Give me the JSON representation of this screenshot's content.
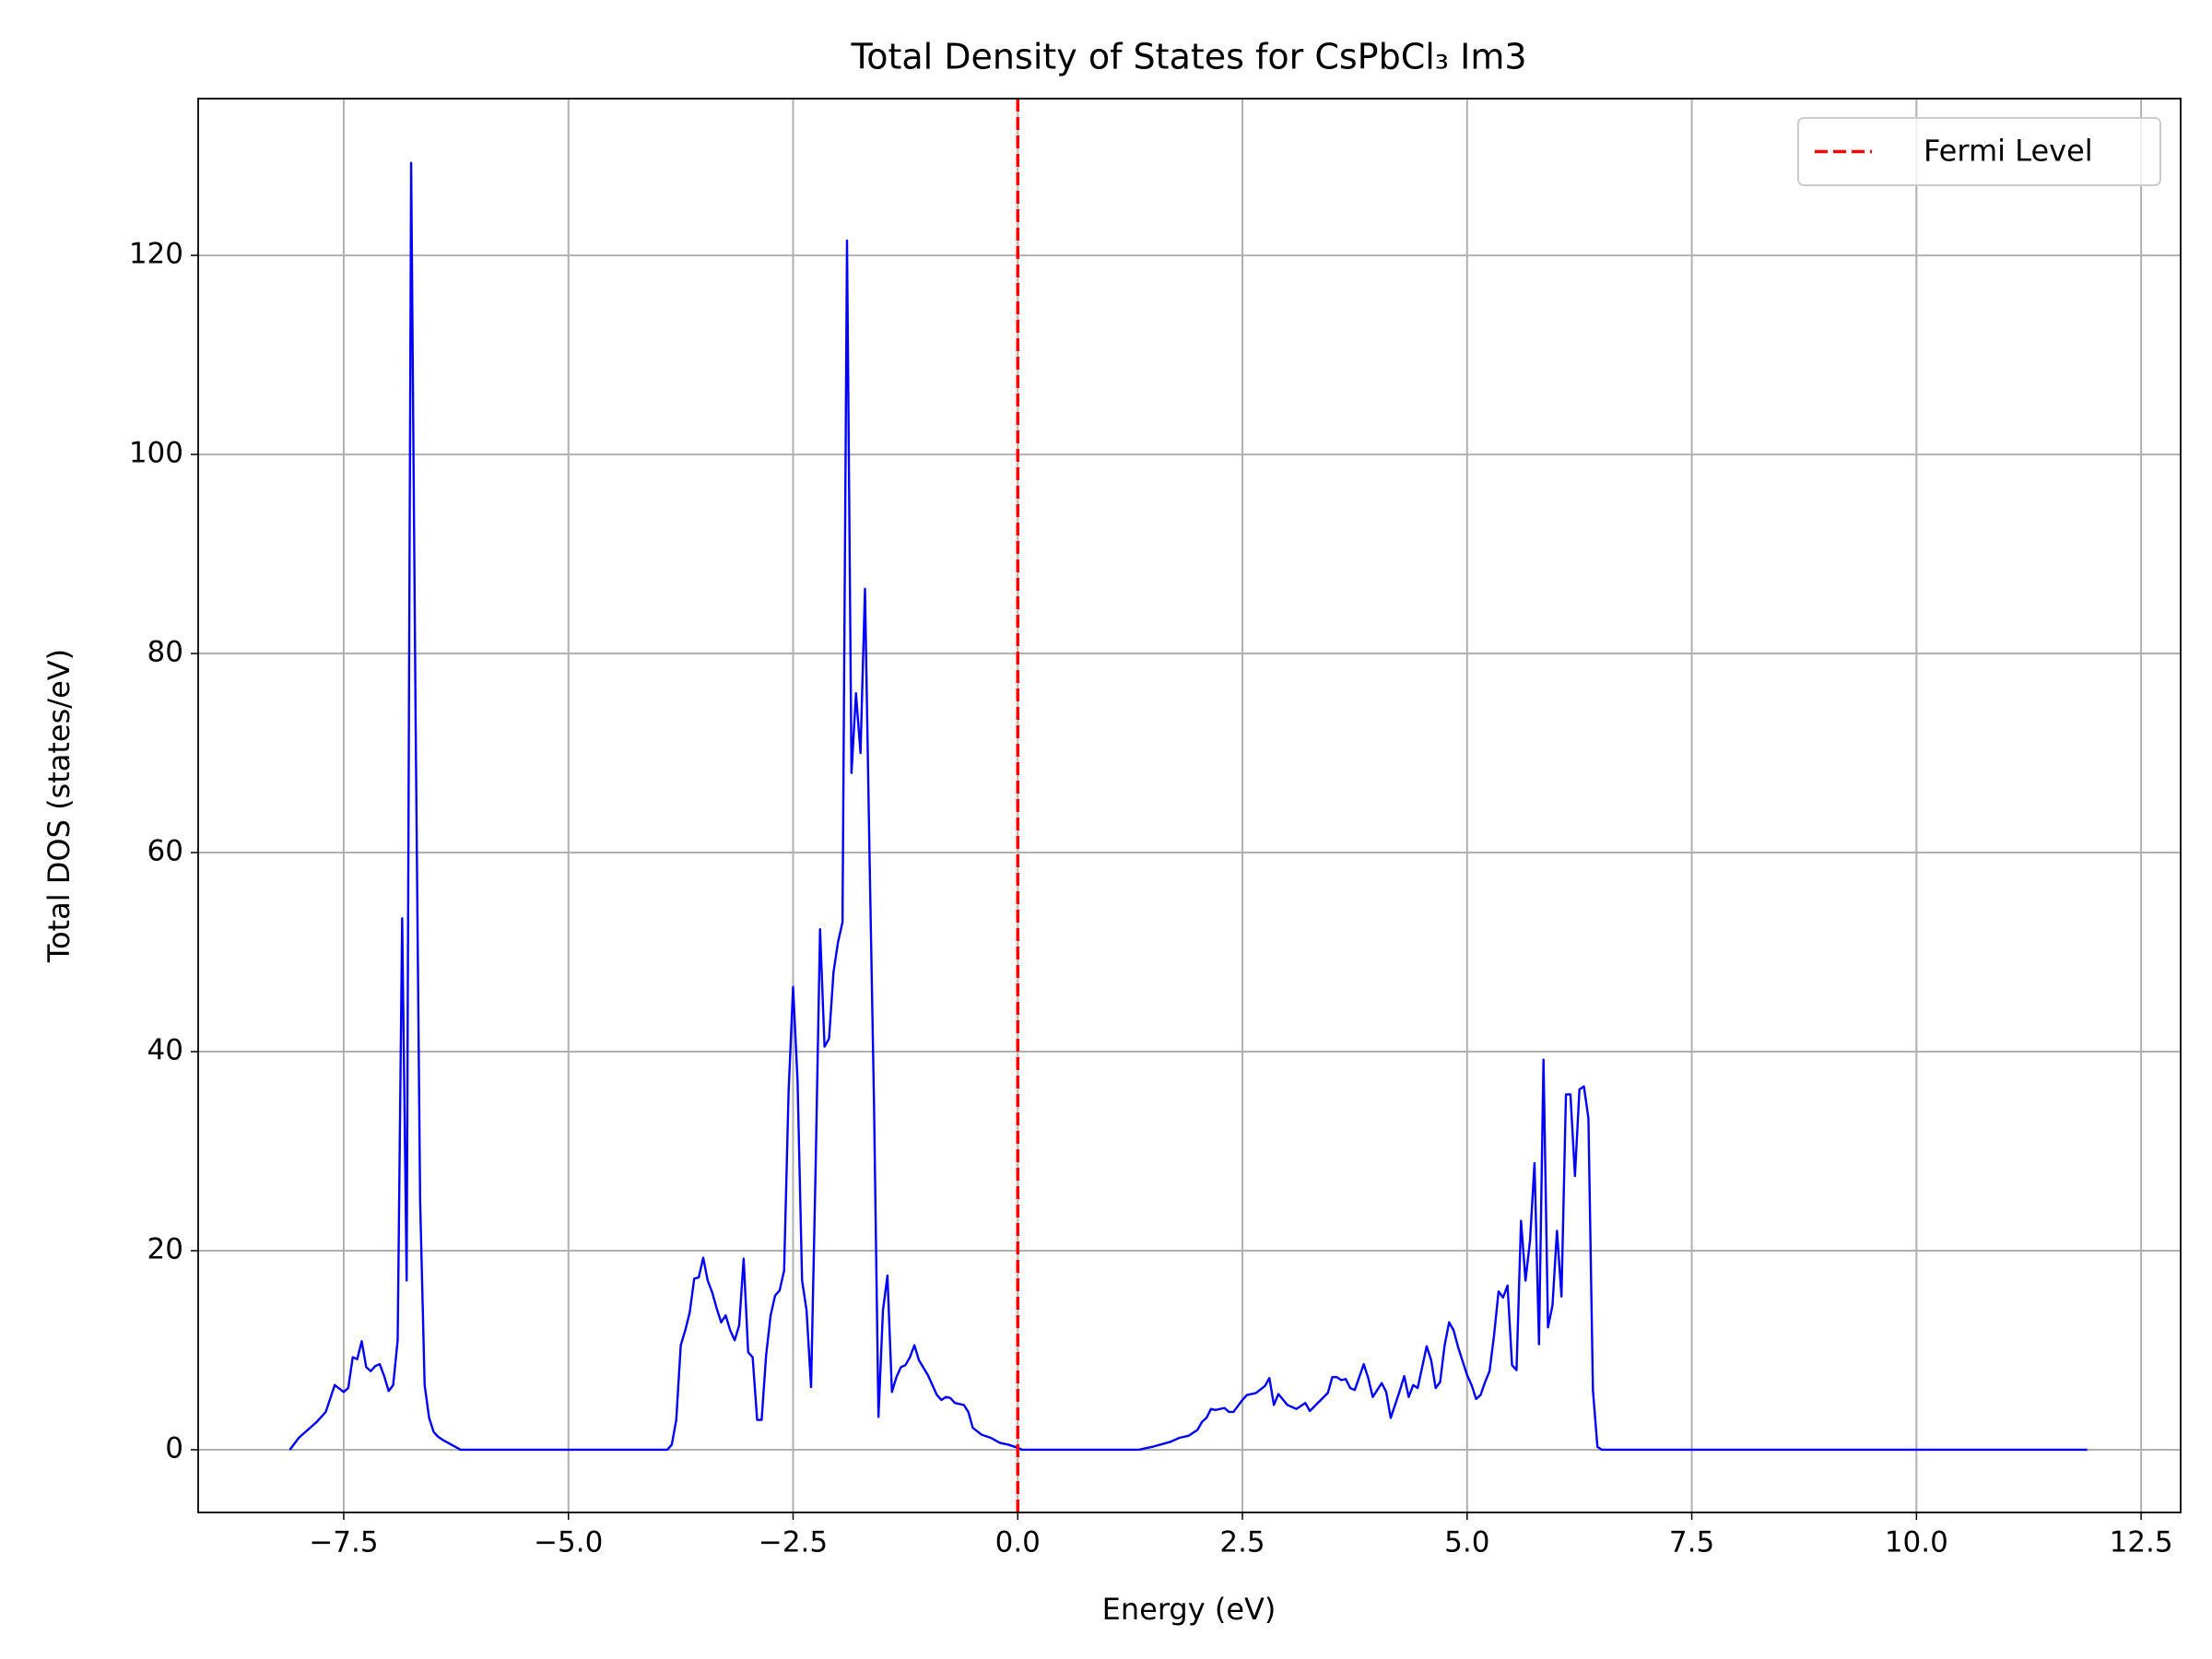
{
  "chart_data": {
    "type": "line",
    "title": "Total Density of States for CsPbCl₃ Im3",
    "xlabel": "Energy (eV)",
    "ylabel": "Total DOS (states/eV)",
    "x": [
      -8.1,
      -8.0,
      -7.9,
      -7.8,
      -7.7,
      -7.6,
      -7.5,
      -7.45,
      -7.4,
      -7.35,
      -7.3,
      -7.25,
      -7.2,
      -7.15,
      -7.1,
      -7.05,
      -7.0,
      -6.95,
      -6.9,
      -6.85,
      -6.8,
      -6.75,
      -6.7,
      -6.65,
      -6.6,
      -6.55,
      -6.5,
      -6.45,
      -6.4,
      -6.3,
      -6.2,
      -3.9,
      -3.85,
      -3.8,
      -3.75,
      -3.7,
      -3.65,
      -3.6,
      -3.55,
      -3.5,
      -3.45,
      -3.4,
      -3.35,
      -3.3,
      -3.25,
      -3.2,
      -3.15,
      -3.1,
      -3.05,
      -3.0,
      -2.95,
      -2.9,
      -2.85,
      -2.8,
      -2.75,
      -2.7,
      -2.65,
      -2.6,
      -2.55,
      -2.5,
      -2.45,
      -2.4,
      -2.35,
      -2.3,
      -2.25,
      -2.2,
      -2.15,
      -2.1,
      -2.05,
      -2.0,
      -1.95,
      -1.9,
      -1.85,
      -1.8,
      -1.75,
      -1.7,
      -1.65,
      -1.6,
      -1.55,
      -1.5,
      -1.45,
      -1.4,
      -1.35,
      -1.3,
      -1.25,
      -1.2,
      -1.15,
      -1.1,
      -1.0,
      -0.9,
      -0.85,
      -0.8,
      -0.75,
      -0.7,
      -0.6,
      -0.55,
      -0.5,
      -0.4,
      -0.3,
      -0.2,
      -0.1,
      0,
      0.05,
      1.35,
      1.5,
      1.7,
      1.8,
      1.9,
      2.0,
      2.05,
      2.1,
      2.15,
      2.2,
      2.3,
      2.35,
      2.4,
      2.5,
      2.55,
      2.65,
      2.75,
      2.8,
      2.85,
      2.9,
      3.0,
      3.1,
      3.2,
      3.25,
      3.35,
      3.45,
      3.5,
      3.55,
      3.6,
      3.65,
      3.7,
      3.75,
      3.85,
      3.9,
      3.95,
      4.0,
      4.05,
      4.1,
      4.15,
      4.25,
      4.3,
      4.35,
      4.4,
      4.45,
      4.5,
      4.55,
      4.6,
      4.65,
      4.7,
      4.75,
      4.8,
      4.85,
      4.9,
      5.0,
      5.05,
      5.1,
      5.15,
      5.2,
      5.25,
      5.3,
      5.35,
      5.4,
      5.45,
      5.5,
      5.55,
      5.6,
      5.65,
      5.7,
      5.75,
      5.8,
      5.85,
      5.9,
      5.95,
      6.0,
      6.05,
      6.1,
      6.15,
      6.2,
      6.25,
      6.3,
      6.35,
      6.4,
      6.45,
      6.5,
      11.9
    ],
    "series": [
      {
        "color": "#0000ff",
        "values": [
          0,
          1.2,
          2.0,
          2.8,
          3.8,
          6.5,
          5.8,
          6.2,
          9.3,
          9.1,
          10.9,
          8.3,
          7.9,
          8.4,
          8.6,
          7.4,
          5.9,
          6.5,
          11,
          53.4,
          17,
          129.3,
          73,
          25,
          6.5,
          3.2,
          1.8,
          1.3,
          1.0,
          0.5,
          0,
          0,
          0.5,
          3,
          10.5,
          12,
          13.8,
          17.2,
          17.3,
          19.3,
          17,
          15.8,
          14.2,
          12.8,
          13.5,
          12,
          11,
          12.5,
          19.2,
          9.8,
          9.3,
          3,
          3,
          9.5,
          13.5,
          15.5,
          16,
          18,
          36,
          46.5,
          37,
          17,
          14,
          6.3,
          28,
          52.3,
          40.5,
          41.3,
          48,
          51,
          53,
          121.5,
          68,
          76,
          70,
          86.5,
          60,
          35,
          3.3,
          14,
          17.5,
          5.8,
          7.3,
          8.3,
          8.5,
          9.3,
          10.5,
          9,
          7.5,
          5.5,
          5,
          5.3,
          5.2,
          4.7,
          4.5,
          3.8,
          2.2,
          1.5,
          1.2,
          0.7,
          0.5,
          0.2,
          0,
          0,
          0.3,
          0.8,
          1.2,
          1.4,
          2.0,
          2.8,
          3.2,
          4.1,
          4.0,
          4.2,
          3.8,
          3.8,
          5.0,
          5.5,
          5.7,
          6.4,
          7.2,
          4.5,
          5.6,
          4.5,
          4.1,
          4.7,
          3.9,
          4.8,
          5.7,
          7.3,
          7.3,
          7.0,
          7.1,
          6.2,
          6.0,
          8.6,
          7.2,
          5.3,
          6.0,
          6.7,
          5.8,
          3.2,
          5.9,
          7.4,
          5.3,
          6.5,
          6.2,
          8.3,
          10.4,
          9.0,
          6.2,
          6.8,
          10.5,
          12.8,
          12.0,
          10.3,
          7.5,
          6.5,
          5.1,
          5.5,
          6.8,
          7.9,
          11.5,
          15.9,
          15.3,
          16.5,
          8.5,
          8.0,
          23,
          17,
          21,
          28.8,
          10.6,
          39.2,
          12.3,
          14.5,
          22,
          15.4,
          35.7,
          35.7,
          27.5,
          36.2,
          36.5,
          33.3,
          6.0,
          0.3,
          0,
          0
        ]
      }
    ],
    "vline": {
      "name": "Fermi Level",
      "x": 0,
      "color": "#ff0000",
      "style": "dashed"
    },
    "xlim": [
      -9.12,
      12.94
    ],
    "ylim": [
      -6.3,
      135.75
    ],
    "xticks": [
      {
        "value": -7.5,
        "label": "−7.5"
      },
      {
        "value": -5,
        "label": "−5.0"
      },
      {
        "value": -2.5,
        "label": "−2.5"
      },
      {
        "value": 0,
        "label": "0.0"
      },
      {
        "value": 2.5,
        "label": "2.5"
      },
      {
        "value": 5,
        "label": "5.0"
      },
      {
        "value": 7.5,
        "label": "7.5"
      },
      {
        "value": 10,
        "label": "10.0"
      },
      {
        "value": 12.5,
        "label": "12.5"
      }
    ],
    "yticks": [
      0,
      20,
      40,
      60,
      80,
      100,
      120
    ],
    "grid": true,
    "legend": "upper right"
  }
}
